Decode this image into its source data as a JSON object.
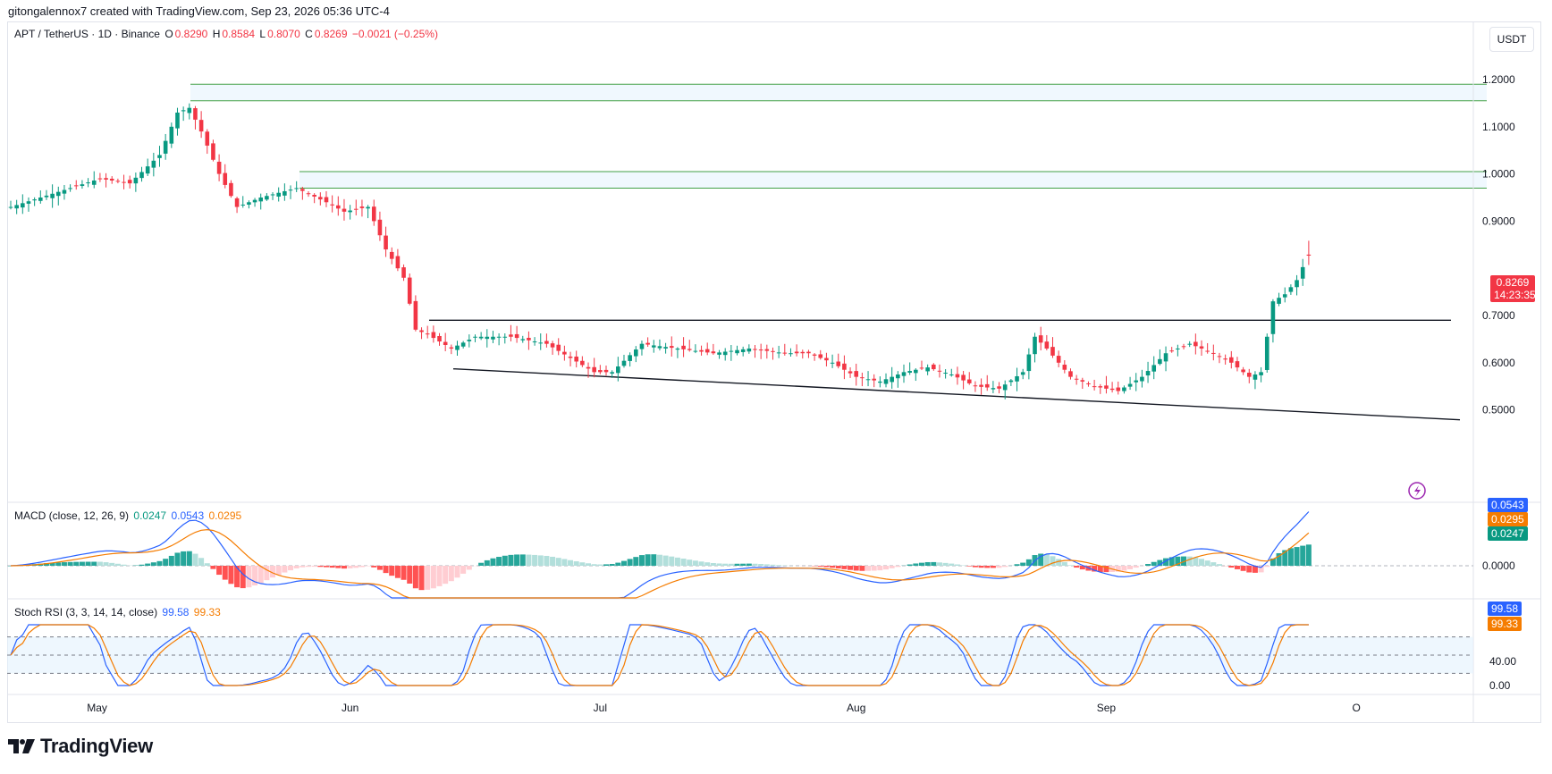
{
  "header": {
    "attribution": "gitongalennox7 created with TradingView.com, Sep 23, 2026 05:36 UTC-4"
  },
  "symbol_legend": {
    "title": "APT / TetherUS · 1D · Binance",
    "o_label": "O",
    "o_value": "0.8290",
    "h_label": "H",
    "h_value": "0.8584",
    "l_label": "L",
    "l_value": "0.8070",
    "c_label": "C",
    "c_value": "0.8269",
    "change": "−0.0021 (−0.25%)"
  },
  "currency_button": "USDT",
  "price_tag": {
    "price": "0.8269",
    "countdown": "14:23:35"
  },
  "macd_legend": {
    "title": "MACD (close, 12, 26, 9)",
    "hist": "0.0247",
    "macd": "0.0543",
    "signal": "0.0295"
  },
  "macd_tags": {
    "macd": "0.0543",
    "signal": "0.0295",
    "hist": "0.0247"
  },
  "stoch_legend": {
    "title": "Stoch RSI (3, 3, 14, 14, close)",
    "k": "99.58",
    "d": "99.33"
  },
  "stoch_tags": {
    "k": "99.58",
    "d": "99.33"
  },
  "footer": {
    "brand": "TradingView"
  },
  "colors": {
    "up": "#089981",
    "down": "#f23645",
    "macd_line": "#2962ff",
    "signal_line": "#f57c00",
    "hist_up_strong": "#26a69a",
    "hist_up_weak": "#b2dfdb",
    "hist_down_strong": "#ff5252",
    "hist_down_weak": "#ffcdd2"
  },
  "chart_data": [
    {
      "type": "candlestick",
      "y_axis": {
        "ticks": [
          "1.2000",
          "1.1000",
          "1.0000",
          "0.9000",
          "0.7000",
          "0.6000",
          "0.5000"
        ],
        "range": [
          0.41,
          1.28
        ]
      },
      "x_axis": {
        "ticks": [
          "May",
          "Jun",
          "Jul",
          "Aug",
          "Sep",
          "O"
        ]
      },
      "ohlc": [],
      "zones": [
        {
          "low": 1.155,
          "high": 1.19
        },
        {
          "low": 0.97,
          "high": 1.005
        }
      ],
      "horizontal_lines": [
        {
          "price": 0.69
        }
      ],
      "trend_lines": [
        {
          "from": [
            "2026-06-07",
            0.587
          ],
          "to": [
            "2026-10-06",
            0.479
          ]
        }
      ]
    },
    {
      "type": "bar+line",
      "name": "MACD",
      "y_axis": {
        "ticks": [
          "0.0000"
        ]
      },
      "series": [
        {
          "name": "Histogram"
        },
        {
          "name": "MACD"
        },
        {
          "name": "Signal"
        }
      ]
    },
    {
      "type": "line",
      "name": "Stoch RSI",
      "y_axis": {
        "ticks": [
          "40.00",
          "0.00"
        ],
        "bands": [
          20,
          50,
          80
        ]
      },
      "series": [
        {
          "name": "K"
        },
        {
          "name": "D"
        }
      ]
    }
  ]
}
